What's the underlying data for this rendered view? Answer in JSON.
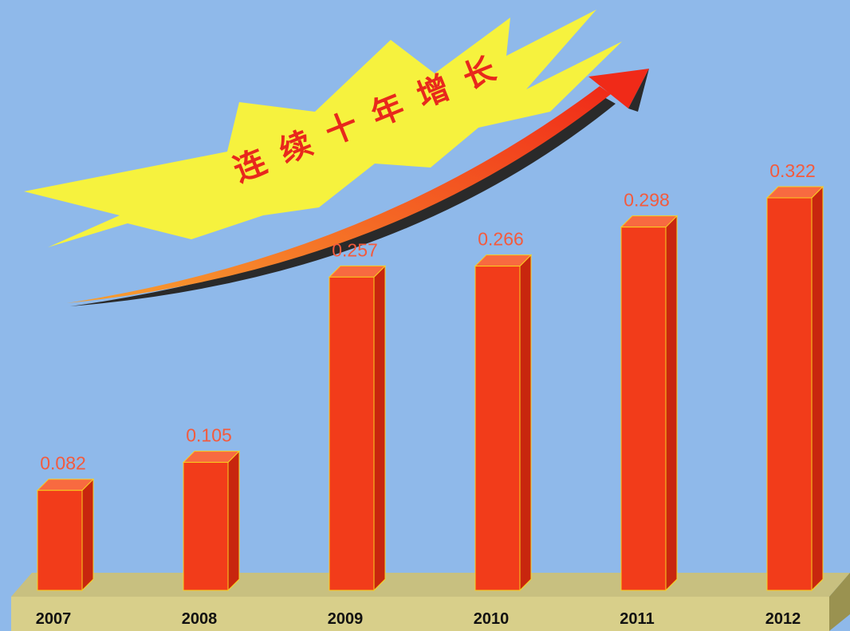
{
  "chart_data": {
    "type": "bar3d",
    "title": "连续十年增长",
    "categories": [
      "2007",
      "2008",
      "2009",
      "2010",
      "2011",
      "2012"
    ],
    "values": [
      0.082,
      0.105,
      0.257,
      0.266,
      0.298,
      0.322
    ],
    "color": "#f23c1a"
  }
}
